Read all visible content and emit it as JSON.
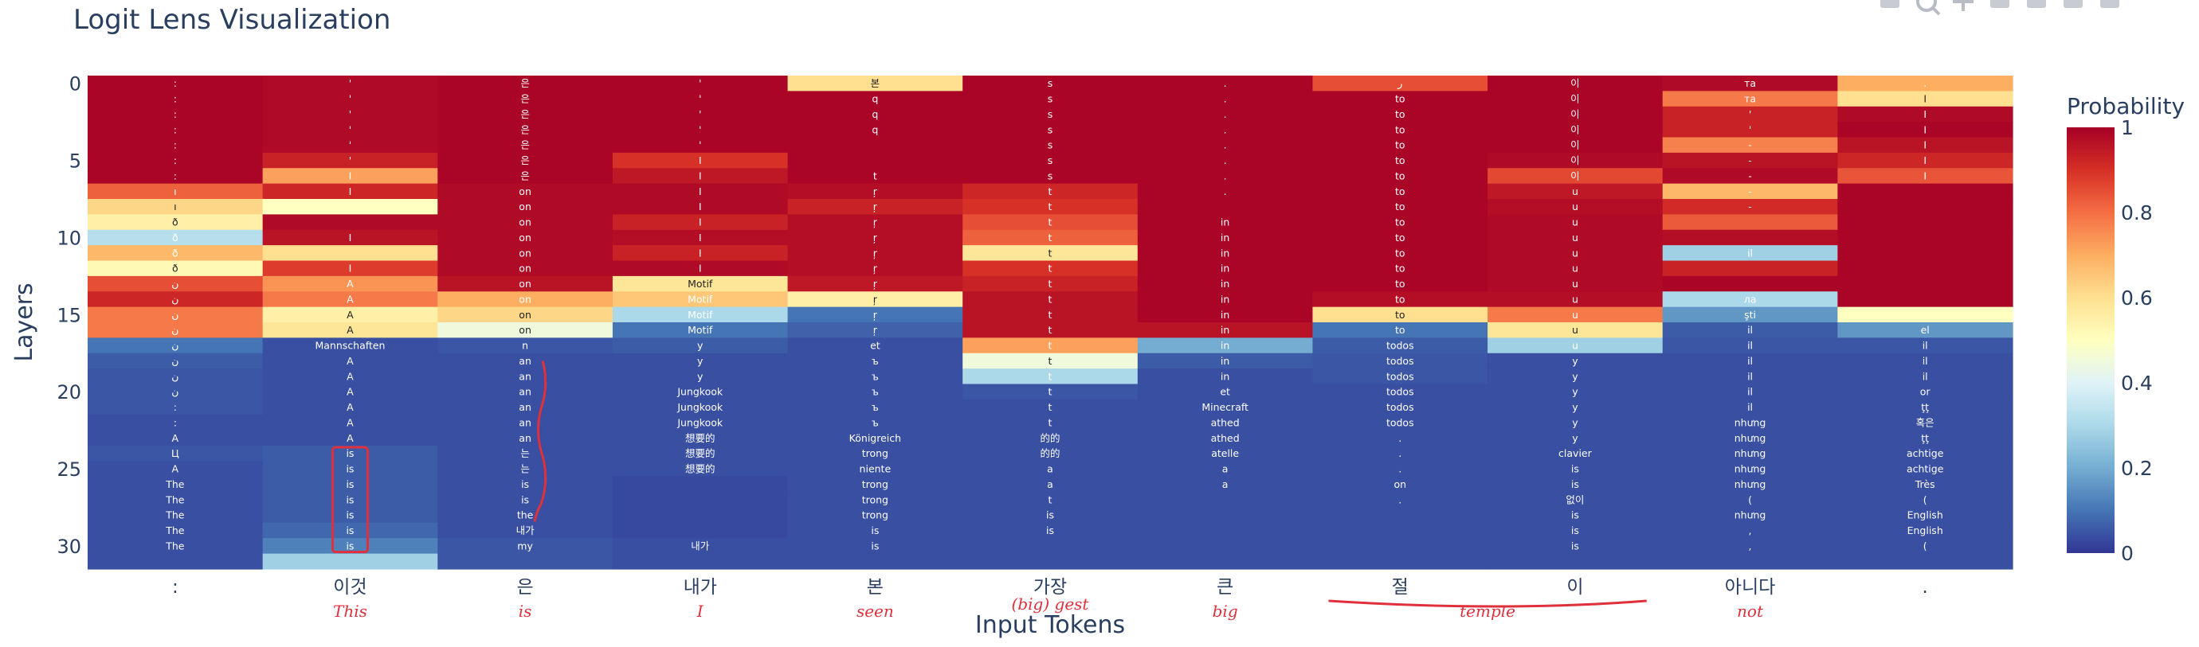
{
  "chart_data": {
    "type": "heatmap",
    "title": "Logit Lens Visualization",
    "xlabel": "Input Tokens",
    "ylabel": "Layers",
    "x_tokens": [
      ":",
      "이것",
      "은",
      "내가",
      "본",
      "가장",
      "큰",
      "절",
      "이",
      "아니다",
      "."
    ],
    "y_layers": [
      0,
      1,
      2,
      3,
      4,
      5,
      6,
      7,
      8,
      9,
      10,
      11,
      12,
      13,
      14,
      15,
      16,
      17,
      18,
      19,
      20,
      21,
      22,
      23,
      24,
      25,
      26,
      27,
      28,
      29,
      30,
      31
    ],
    "y_ticks": [
      0,
      5,
      10,
      15,
      20,
      25,
      30
    ],
    "yaxis_reversed": true,
    "colorscale": "RdYlBu_r",
    "colorbar": {
      "title": "Probability",
      "range": [
        0,
        1
      ],
      "ticks": [
        "0",
        "0.2",
        "0.4",
        "0.6",
        "0.8",
        "1"
      ]
    },
    "columns": [
      {
        "token": ":",
        "labels": [
          ":",
          ":",
          ":",
          ":",
          ":",
          ":",
          ":",
          "ı",
          "ı",
          "ð",
          "ð",
          "ð",
          "ð",
          "ن",
          "ن",
          "ن",
          "ن",
          "ن",
          "ن",
          "ن",
          "ن",
          ":",
          ":",
          "A",
          "Ц",
          "A",
          "The",
          "The",
          "The",
          "The",
          "The",
          ""
        ],
        "probs": [
          0.99,
          0.99,
          0.99,
          0.99,
          0.99,
          0.99,
          0.99,
          0.82,
          0.62,
          0.55,
          0.32,
          0.68,
          0.52,
          0.85,
          0.92,
          0.78,
          0.78,
          0.1,
          0.06,
          0.05,
          0.05,
          0.05,
          0.04,
          0.04,
          0.05,
          0.04,
          0.04,
          0.04,
          0.04,
          0.04,
          0.04,
          0.04
        ]
      },
      {
        "token": "이것",
        "labels": [
          "'",
          "'",
          "'",
          "'",
          "'",
          "'",
          "I",
          "I",
          "",
          "",
          "I",
          "",
          "I",
          "A",
          "A",
          "A",
          "A",
          "Mannschaften",
          "A",
          "A",
          "A",
          "A",
          "A",
          "A",
          "is",
          "is",
          "is",
          "is",
          "is",
          "is",
          "is",
          ""
        ],
        "probs": [
          0.98,
          0.98,
          0.98,
          0.98,
          0.98,
          0.93,
          0.72,
          0.92,
          0.5,
          0.98,
          0.96,
          0.6,
          0.88,
          0.74,
          0.78,
          0.55,
          0.58,
          0.04,
          0.04,
          0.04,
          0.04,
          0.04,
          0.04,
          0.04,
          0.06,
          0.06,
          0.06,
          0.06,
          0.06,
          0.08,
          0.12,
          0.28
        ]
      },
      {
        "token": "은",
        "labels": [
          "은",
          "은",
          "은",
          "은",
          "은",
          "은",
          "은",
          "on",
          "on",
          "on",
          "on",
          "on",
          "on",
          "on",
          "on",
          "on",
          "on",
          "n",
          "an",
          "an",
          "an",
          "an",
          "an",
          "an",
          "는",
          "는",
          "is",
          "is",
          "the",
          "내가",
          "my",
          ""
        ],
        "probs": [
          0.99,
          0.99,
          0.99,
          0.99,
          0.99,
          0.99,
          0.99,
          0.98,
          0.98,
          0.98,
          0.98,
          0.98,
          0.98,
          0.96,
          0.7,
          0.62,
          0.45,
          0.05,
          0.04,
          0.04,
          0.04,
          0.04,
          0.04,
          0.04,
          0.04,
          0.04,
          0.04,
          0.04,
          0.04,
          0.04,
          0.05,
          0.05
        ]
      },
      {
        "token": "내가",
        "labels": [
          "'",
          "'",
          "'",
          "'",
          "'",
          "I",
          "I",
          "I",
          "I",
          "I",
          "I",
          "I",
          "I",
          "Motif",
          "Motif",
          "Motif",
          "Motif",
          "y",
          "y",
          "y",
          "Jungkook",
          "Jungkook",
          "Jungkook",
          "想要的",
          "想要的",
          "想要的",
          "",
          "",
          "",
          "",
          "내가",
          ""
        ],
        "probs": [
          0.99,
          0.99,
          0.99,
          0.99,
          0.99,
          0.9,
          0.95,
          0.98,
          0.98,
          0.93,
          0.97,
          0.93,
          0.98,
          0.58,
          0.65,
          0.3,
          0.1,
          0.06,
          0.04,
          0.04,
          0.04,
          0.04,
          0.04,
          0.04,
          0.04,
          0.04,
          0.03,
          0.03,
          0.03,
          0.03,
          0.04,
          0.04
        ]
      },
      {
        "token": "본",
        "labels": [
          "본",
          "q",
          "q",
          "q",
          "",
          "",
          "t",
          "ŗ",
          "ŗ",
          "ŗ",
          "ŗ",
          "ŗ",
          "ŗ",
          "ŗ",
          "ŗ",
          "ŗ",
          "ŗ",
          "et",
          "ъ",
          "ъ",
          "ъ",
          "ъ",
          "ъ",
          "Königreich",
          "trong",
          "niente",
          "trong",
          "trong",
          "trong",
          "is",
          "is",
          ""
        ],
        "probs": [
          0.6,
          0.99,
          0.99,
          0.99,
          0.99,
          0.99,
          0.99,
          0.97,
          0.93,
          0.97,
          0.97,
          0.97,
          0.97,
          0.95,
          0.55,
          0.1,
          0.07,
          0.04,
          0.04,
          0.04,
          0.04,
          0.04,
          0.04,
          0.04,
          0.04,
          0.04,
          0.04,
          0.04,
          0.04,
          0.04,
          0.04,
          0.04
        ]
      },
      {
        "token": "가장",
        "labels": [
          "s",
          "s",
          "s",
          "s",
          "s",
          "s",
          "s",
          "t",
          "t",
          "t",
          "t",
          "t",
          "t",
          "t",
          "t",
          "t",
          "t",
          "t",
          "t",
          "t",
          "t",
          "t",
          "t",
          "的的",
          "的的",
          "a",
          "a",
          "t",
          "is",
          "is",
          "",
          ""
        ],
        "probs": [
          0.99,
          0.99,
          0.99,
          0.99,
          0.99,
          0.99,
          0.99,
          0.92,
          0.9,
          0.85,
          0.82,
          0.58,
          0.9,
          0.93,
          0.96,
          0.96,
          0.96,
          0.72,
          0.45,
          0.3,
          0.05,
          0.04,
          0.04,
          0.04,
          0.04,
          0.04,
          0.04,
          0.04,
          0.04,
          0.04,
          0.04,
          0.04
        ]
      },
      {
        "token": "큰",
        "labels": [
          ".",
          ".",
          ".",
          ".",
          ".",
          ".",
          ".",
          ".",
          "",
          "in",
          "in",
          "in",
          "in",
          "in",
          "in",
          "in",
          "in",
          "in",
          "in",
          "in",
          "et",
          "Minecraft",
          "athed",
          "athed",
          "atelle",
          "a",
          "a",
          "",
          "",
          "",
          "",
          ""
        ],
        "probs": [
          0.99,
          0.99,
          0.99,
          0.99,
          0.99,
          0.99,
          0.99,
          0.99,
          0.99,
          0.99,
          0.99,
          0.99,
          0.99,
          0.99,
          0.99,
          0.99,
          0.96,
          0.2,
          0.06,
          0.04,
          0.04,
          0.04,
          0.04,
          0.04,
          0.04,
          0.04,
          0.04,
          0.04,
          0.04,
          0.04,
          0.04,
          0.04
        ]
      },
      {
        "token": "절",
        "labels": [
          "ر",
          "to",
          "to",
          "to",
          "to",
          "to",
          "to",
          "to",
          "to",
          "to",
          "to",
          "to",
          "to",
          "to",
          "to",
          "to",
          "to",
          "todos",
          "todos",
          "todos",
          "todos",
          "todos",
          "todos",
          ".",
          ".",
          ".",
          "on",
          ".",
          "",
          "",
          "",
          ""
        ],
        "probs": [
          0.85,
          0.99,
          0.99,
          0.99,
          0.99,
          0.99,
          0.99,
          0.99,
          0.99,
          0.99,
          0.99,
          0.99,
          0.99,
          0.99,
          0.97,
          0.6,
          0.1,
          0.06,
          0.05,
          0.05,
          0.04,
          0.04,
          0.04,
          0.04,
          0.04,
          0.04,
          0.04,
          0.04,
          0.04,
          0.04,
          0.04,
          0.04
        ]
      },
      {
        "token": "이",
        "labels": [
          "이",
          "이",
          "이",
          "이",
          "이",
          "이",
          "이",
          "u",
          "u",
          "u",
          "u",
          "u",
          "u",
          "u",
          "u",
          "u",
          "u",
          "u",
          "y",
          "y",
          "y",
          "y",
          "y",
          "y",
          "clavier",
          "is",
          "is",
          "없이",
          "is",
          "is",
          "is",
          ""
        ],
        "probs": [
          0.99,
          0.99,
          0.99,
          0.99,
          0.99,
          0.98,
          0.86,
          0.95,
          0.97,
          0.98,
          0.98,
          0.98,
          0.98,
          0.98,
          0.97,
          0.78,
          0.58,
          0.28,
          0.04,
          0.04,
          0.04,
          0.04,
          0.04,
          0.04,
          0.04,
          0.04,
          0.04,
          0.04,
          0.04,
          0.04,
          0.04,
          0.04
        ]
      },
      {
        "token": "아니다",
        "labels": [
          "та",
          "та",
          "'",
          "'",
          "-",
          "-",
          "-",
          "-",
          "-",
          "",
          "",
          "il",
          "",
          "",
          "ла",
          "şti",
          "il",
          "il",
          "il",
          "il",
          "il",
          "il",
          "nhưng",
          "nhưng",
          "nhưng",
          "nhưng",
          "nhưng",
          "(",
          "nhưng",
          ",",
          ",",
          ""
        ],
        "probs": [
          0.98,
          0.78,
          0.93,
          0.93,
          0.77,
          0.96,
          0.98,
          0.68,
          0.91,
          0.83,
          0.97,
          0.28,
          0.93,
          0.99,
          0.3,
          0.16,
          0.06,
          0.05,
          0.04,
          0.04,
          0.04,
          0.04,
          0.04,
          0.04,
          0.04,
          0.04,
          0.04,
          0.04,
          0.04,
          0.04,
          0.04,
          0.04
        ]
      },
      {
        "token": ".",
        "labels": [
          ".",
          "I",
          "I",
          "I",
          "I",
          "I",
          "I",
          "",
          "",
          "",
          "",
          "",
          "",
          "",
          "",
          "",
          "el",
          "il",
          "il",
          "il",
          "or",
          "ţţ",
          "혹은",
          "ţţ",
          "achtige",
          "achtige",
          "Très",
          "(",
          "English",
          "English",
          "(",
          ""
        ],
        "probs": [
          0.7,
          0.6,
          0.98,
          0.99,
          0.96,
          0.92,
          0.84,
          0.99,
          0.99,
          0.99,
          0.99,
          0.99,
          0.99,
          0.99,
          0.99,
          0.5,
          0.16,
          0.05,
          0.04,
          0.04,
          0.04,
          0.04,
          0.04,
          0.04,
          0.04,
          0.04,
          0.04,
          0.04,
          0.04,
          0.04,
          0.04,
          0.04
        ]
      }
    ],
    "annotations": {
      "handwritten_translations": [
        "This",
        "is",
        "I",
        "seen",
        "(big) gest",
        "big",
        "temple",
        "not"
      ]
    }
  }
}
